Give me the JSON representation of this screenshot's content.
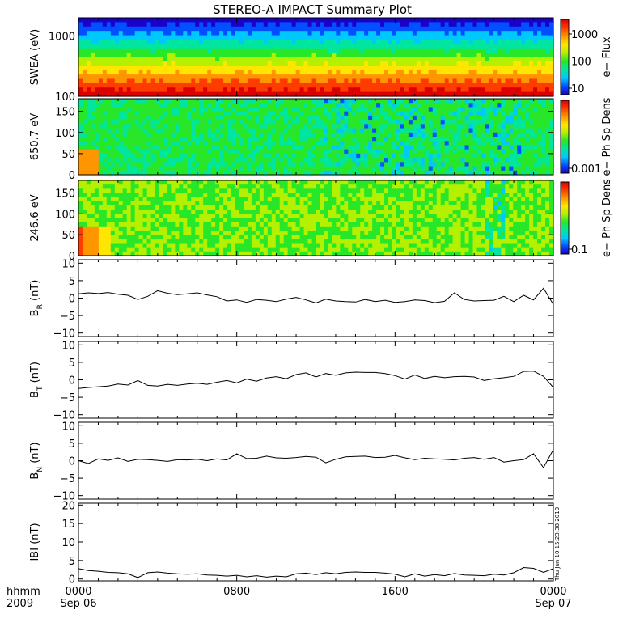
{
  "title": "STEREO-A IMPACT Summary Plot",
  "timestamp": "Thu Jun 10 15:23:38 2010",
  "time_axis": {
    "corner_labels": [
      "hhmm",
      "2009"
    ],
    "ticks": [
      {
        "hour": 0,
        "line1": "0000",
        "line2": "Sep 06"
      },
      {
        "hour": 8,
        "line1": "0800",
        "line2": ""
      },
      {
        "hour": 16,
        "line1": "1600",
        "line2": ""
      },
      {
        "hour": 24,
        "line1": "0000",
        "line2": "Sep 07"
      }
    ],
    "range_hours": [
      0,
      24
    ]
  },
  "colors": {
    "spectrogram_scale": [
      "#1a00c8",
      "#0050ff",
      "#00c8ff",
      "#00e6a0",
      "#28e628",
      "#b4f000",
      "#ffe600",
      "#ff9600",
      "#ff3c00",
      "#dc0000"
    ]
  },
  "chart_data": [
    {
      "type": "heatmap",
      "ylabel": "SWEA (eV)",
      "yscale": "log",
      "ylim": [
        100,
        2000
      ],
      "yticks": [
        {
          "v": 100,
          "label": "100"
        },
        {
          "v": 1000,
          "label": "1000"
        }
      ],
      "colorbar": {
        "label": "e− Flux",
        "scale": "log",
        "ticks": [
          "10",
          "100",
          "1000"
        ]
      },
      "description_rows_low_to_high_energy": "red at 100 eV, yellow/green near 300-600 eV, cyan-blue near 1000 eV, dark blue at top"
    },
    {
      "type": "heatmap",
      "ylabel": "650.7 eV",
      "ylim": [
        0,
        180
      ],
      "yticks": [
        {
          "v": 0,
          "label": "0"
        },
        {
          "v": 50,
          "label": "50"
        },
        {
          "v": 100,
          "label": "100"
        },
        {
          "v": 150,
          "label": "150"
        }
      ],
      "colorbar": {
        "label": "e− Ph Sp Dens",
        "ticks": [
          "0.001"
        ]
      }
    },
    {
      "type": "heatmap",
      "ylabel": "246.6 eV",
      "ylim": [
        0,
        180
      ],
      "yticks": [
        {
          "v": 0,
          "label": "0"
        },
        {
          "v": 50,
          "label": "50"
        },
        {
          "v": 100,
          "label": "100"
        },
        {
          "v": 150,
          "label": "150"
        }
      ],
      "colorbar": {
        "label": "e− Ph Sp Dens",
        "ticks": [
          "0.1"
        ]
      }
    },
    {
      "type": "line",
      "ylabel_main": "B",
      "ylabel_sub": "R",
      "ylabel_unit": " (nT)",
      "ylim": [
        -11,
        11
      ],
      "yticks": [
        {
          "v": -10,
          "label": "−10"
        },
        {
          "v": -5,
          "label": "−5"
        },
        {
          "v": 0,
          "label": "0"
        },
        {
          "v": 5,
          "label": "5"
        },
        {
          "v": 10,
          "label": "10"
        }
      ],
      "x": [
        0,
        0.5,
        1,
        1.5,
        2,
        2.5,
        3,
        3.5,
        4,
        4.5,
        5,
        5.5,
        6,
        6.5,
        7,
        7.5,
        8,
        8.5,
        9,
        9.5,
        10,
        10.5,
        11,
        11.5,
        12,
        12.5,
        13,
        13.5,
        14,
        14.5,
        15,
        15.5,
        16,
        16.5,
        17,
        17.5,
        18,
        18.5,
        19,
        19.5,
        20,
        20.5,
        21,
        21.5,
        22,
        22.5,
        23,
        23.5,
        24
      ],
      "values": [
        1.2,
        1.5,
        1.3,
        1.6,
        1.1,
        0.8,
        -0.4,
        0.5,
        2.1,
        1.4,
        1.0,
        1.2,
        1.5,
        0.9,
        0.4,
        -0.8,
        -0.5,
        -1.2,
        -0.4,
        -0.6,
        -1.0,
        -0.3,
        0.2,
        -0.5,
        -1.4,
        -0.3,
        -0.8,
        -1.0,
        -1.1,
        -0.4,
        -1.0,
        -0.6,
        -1.2,
        -1.0,
        -0.5,
        -0.7,
        -1.3,
        -0.9,
        1.5,
        -0.4,
        -0.8,
        -0.7,
        -0.6,
        0.5,
        -1.0,
        0.8,
        -0.5,
        2.8,
        -1.8
      ]
    },
    {
      "type": "line",
      "ylabel_main": "B",
      "ylabel_sub": "T",
      "ylabel_unit": " (nT)",
      "ylim": [
        -11,
        11
      ],
      "yticks": [
        {
          "v": -10,
          "label": "−10"
        },
        {
          "v": -5,
          "label": "−5"
        },
        {
          "v": 0,
          "label": "0"
        },
        {
          "v": 5,
          "label": "5"
        },
        {
          "v": 10,
          "label": "10"
        }
      ],
      "x": [
        0,
        0.5,
        1,
        1.5,
        2,
        2.5,
        3,
        3.5,
        4,
        4.5,
        5,
        5.5,
        6,
        6.5,
        7,
        7.5,
        8,
        8.5,
        9,
        9.5,
        10,
        10.5,
        11,
        11.5,
        12,
        12.5,
        13,
        13.5,
        14,
        14.5,
        15,
        15.5,
        16,
        16.5,
        17,
        17.5,
        18,
        18.5,
        19,
        19.5,
        20,
        20.5,
        21,
        21.5,
        22,
        22.5,
        23,
        23.5,
        24
      ],
      "values": [
        -2.5,
        -2.2,
        -2.0,
        -1.8,
        -1.2,
        -1.5,
        -0.2,
        -1.6,
        -1.8,
        -1.3,
        -1.6,
        -1.2,
        -1.0,
        -1.3,
        -0.7,
        -0.2,
        -0.9,
        0.2,
        -0.4,
        0.5,
        0.9,
        0.3,
        1.5,
        2.0,
        0.8,
        1.8,
        1.3,
        2.0,
        2.2,
        2.1,
        2.1,
        1.8,
        1.2,
        0.2,
        1.4,
        0.4,
        1.0,
        0.6,
        0.9,
        1.0,
        0.8,
        -0.2,
        0.3,
        0.6,
        1.0,
        2.4,
        2.5,
        1.0,
        -2.2
      ]
    },
    {
      "type": "line",
      "ylabel_main": "B",
      "ylabel_sub": "N",
      "ylabel_unit": " (nT)",
      "ylim": [
        -11,
        11
      ],
      "yticks": [
        {
          "v": -10,
          "label": "−10"
        },
        {
          "v": -5,
          "label": "−5"
        },
        {
          "v": 0,
          "label": "0"
        },
        {
          "v": 5,
          "label": "5"
        },
        {
          "v": 10,
          "label": "10"
        }
      ],
      "x": [
        0,
        0.5,
        1,
        1.5,
        2,
        2.5,
        3,
        3.5,
        4,
        4.5,
        5,
        5.5,
        6,
        6.5,
        7,
        7.5,
        8,
        8.5,
        9,
        9.5,
        10,
        10.5,
        11,
        11.5,
        12,
        12.5,
        13,
        13.5,
        14,
        14.5,
        15,
        15.5,
        16,
        16.5,
        17,
        17.5,
        18,
        18.5,
        19,
        19.5,
        20,
        20.5,
        21,
        21.5,
        22,
        22.5,
        23,
        23.5,
        24
      ],
      "values": [
        0.0,
        -0.8,
        0.5,
        0.1,
        0.8,
        -0.2,
        0.4,
        0.3,
        0.1,
        -0.2,
        0.3,
        0.2,
        0.4,
        0.0,
        0.5,
        0.2,
        2.0,
        0.6,
        0.7,
        1.3,
        0.8,
        0.7,
        0.9,
        1.2,
        1.0,
        -0.6,
        0.4,
        1.1,
        1.2,
        1.3,
        0.9,
        1.0,
        1.5,
        0.8,
        0.3,
        0.7,
        0.5,
        0.4,
        0.2,
        0.7,
        0.9,
        0.4,
        0.9,
        -0.4,
        0.0,
        0.3,
        2.0,
        -2.0,
        3.2
      ]
    },
    {
      "type": "line",
      "ylabel_main": "IBI",
      "ylabel_sub": "",
      "ylabel_unit": " (nT)",
      "ylim": [
        -0.5,
        20.5
      ],
      "yticks": [
        {
          "v": 0,
          "label": "0"
        },
        {
          "v": 5,
          "label": "5"
        },
        {
          "v": 10,
          "label": "10"
        },
        {
          "v": 15,
          "label": "15"
        },
        {
          "v": 20,
          "label": "20"
        }
      ],
      "x": [
        0,
        0.5,
        1,
        1.5,
        2,
        2.5,
        3,
        3.5,
        4,
        4.5,
        5,
        5.5,
        6,
        6.5,
        7,
        7.5,
        8,
        8.5,
        9,
        9.5,
        10,
        10.5,
        11,
        11.5,
        12,
        12.5,
        13,
        13.5,
        14,
        14.5,
        15,
        15.5,
        16,
        16.5,
        17,
        17.5,
        18,
        18.5,
        19,
        19.5,
        20,
        20.5,
        21,
        21.5,
        22,
        22.5,
        23,
        23.5,
        24
      ],
      "values": [
        2.8,
        2.3,
        2.1,
        1.8,
        1.7,
        1.4,
        0.4,
        1.7,
        1.9,
        1.6,
        1.4,
        1.3,
        1.4,
        1.1,
        1.0,
        0.8,
        1.0,
        0.6,
        0.9,
        0.5,
        0.8,
        0.6,
        1.4,
        1.6,
        1.2,
        1.7,
        1.4,
        1.8,
        1.9,
        1.8,
        1.8,
        1.6,
        1.3,
        0.6,
        1.4,
        0.8,
        1.2,
        0.9,
        1.5,
        1.1,
        1.0,
        0.9,
        1.3,
        1.1,
        1.7,
        3.1,
        2.9,
        1.8,
        2.8
      ]
    }
  ]
}
